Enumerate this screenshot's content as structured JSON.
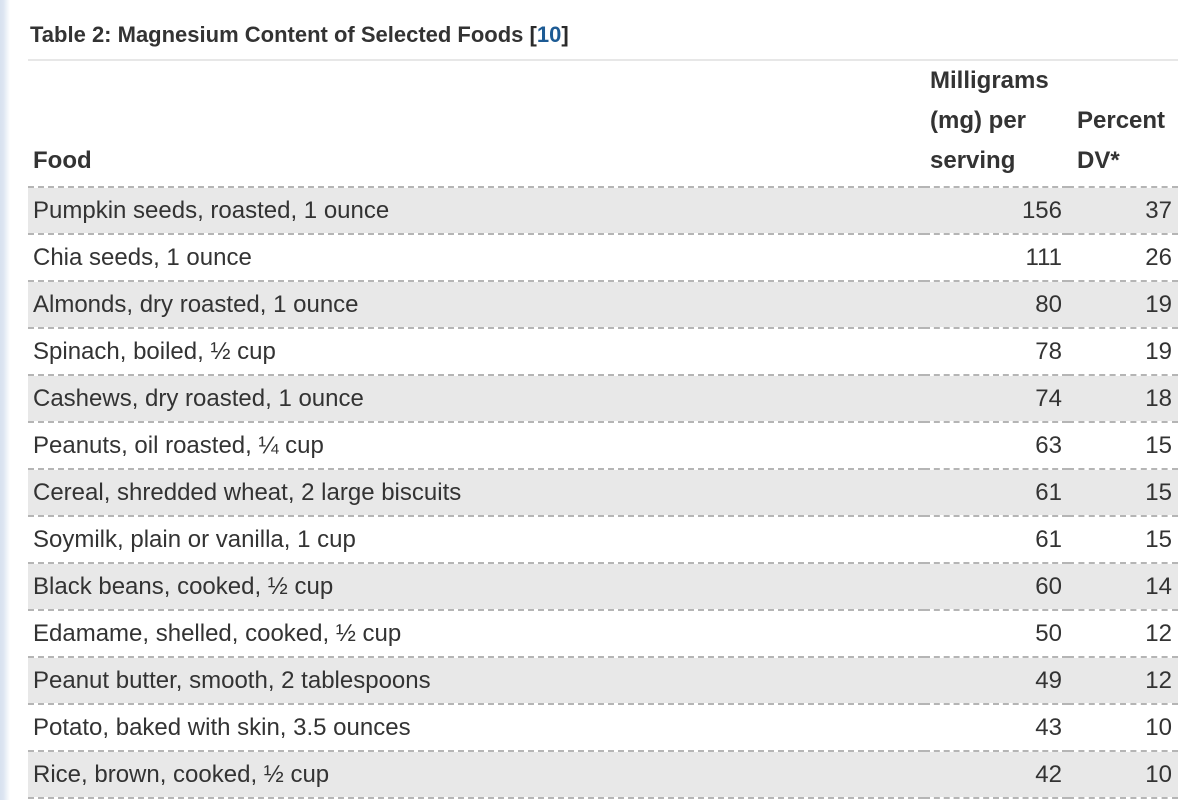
{
  "title": {
    "text": "Table 2: Magnesium Content of Selected Foods ",
    "ref_open": "[",
    "ref_label": "10",
    "ref_close": "]"
  },
  "table": {
    "headers": {
      "food": "Food",
      "mg": "Milligrams (mg) per serving",
      "dv": "Percent DV*"
    },
    "rows": [
      {
        "food": "Pumpkin seeds, roasted, 1 ounce",
        "mg": "156",
        "dv": "37"
      },
      {
        "food": "Chia seeds, 1 ounce",
        "mg": "111",
        "dv": "26"
      },
      {
        "food": "Almonds, dry roasted, 1 ounce",
        "mg": "80",
        "dv": "19"
      },
      {
        "food": "Spinach, boiled, ½ cup",
        "mg": "78",
        "dv": "19"
      },
      {
        "food": "Cashews, dry roasted, 1 ounce",
        "mg": "74",
        "dv": "18"
      },
      {
        "food": "Peanuts, oil roasted, ¼ cup",
        "mg": "63",
        "dv": "15"
      },
      {
        "food": "Cereal, shredded wheat, 2 large biscuits",
        "mg": "61",
        "dv": "15"
      },
      {
        "food": "Soymilk, plain or vanilla, 1 cup",
        "mg": "61",
        "dv": "15"
      },
      {
        "food": "Black beans, cooked, ½ cup",
        "mg": "60",
        "dv": "14"
      },
      {
        "food": "Edamame, shelled, cooked, ½ cup",
        "mg": "50",
        "dv": "12"
      },
      {
        "food": "Peanut butter, smooth, 2 tablespoons",
        "mg": "49",
        "dv": "12"
      },
      {
        "food": "Potato, baked with skin, 3.5 ounces",
        "mg": "43",
        "dv": "10"
      },
      {
        "food": "Rice, brown, cooked, ½ cup",
        "mg": "42",
        "dv": "10"
      }
    ]
  },
  "colors": {
    "row_stripe": "#e8e8e8",
    "dashed_border": "#b5b5b5",
    "text": "#333333",
    "link_blue": "#1d5b94",
    "title_divider": "#e7e7e7",
    "left_edge": "#d7e1ef"
  }
}
